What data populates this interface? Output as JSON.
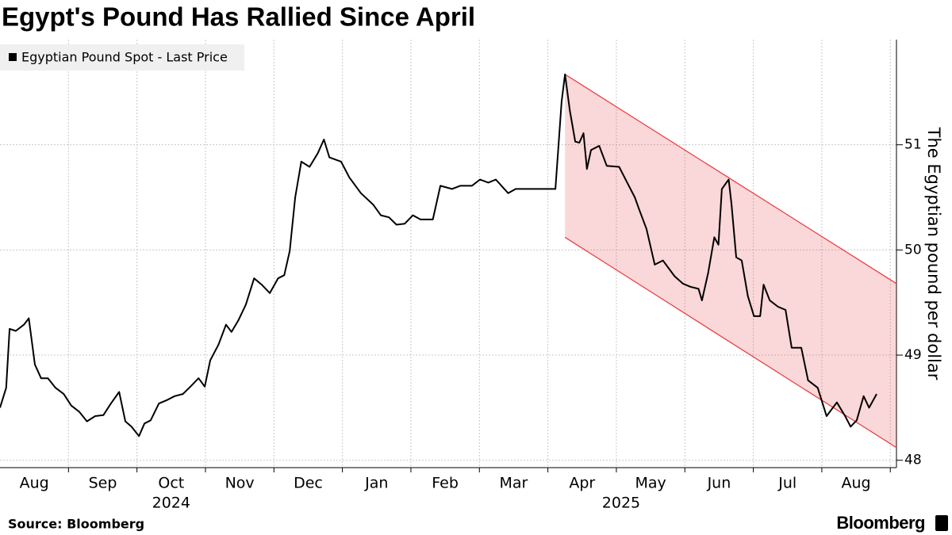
{
  "chart_data": {
    "type": "line",
    "title": "Egypt's Pound Has Rallied Since April",
    "y_axis_label": "The Egyptian pound per dollar",
    "source": "Source: Bloomberg",
    "brand": "Bloomberg",
    "x": [
      0,
      0.09,
      0.14,
      0.23,
      0.35,
      0.42,
      0.51,
      0.6,
      0.7,
      0.81,
      0.93,
      1.04,
      1.16,
      1.27,
      1.39,
      1.51,
      1.62,
      1.74,
      1.83,
      1.92,
      2.03,
      2.11,
      2.2,
      2.32,
      2.43,
      2.55,
      2.67,
      2.78,
      2.9,
      2.99,
      3.07,
      3.19,
      3.3,
      3.38,
      3.48,
      3.59,
      3.71,
      3.82,
      3.94,
      4.06,
      4.15,
      4.23,
      4.31,
      4.4,
      4.52,
      4.64,
      4.73,
      4.81,
      4.98,
      5.1,
      5.27,
      5.45,
      5.56,
      5.68,
      5.79,
      5.91,
      6.03,
      6.14,
      6.32,
      6.43,
      6.6,
      6.72,
      6.89,
      7.01,
      7.13,
      7.24,
      7.42,
      7.53,
      7.65,
      7.82,
      8.0,
      8.11,
      8.2,
      8.25,
      8.32,
      8.4,
      8.46,
      8.52,
      8.57,
      8.63,
      8.75,
      8.86,
      9.04,
      9.15,
      9.27,
      9.33,
      9.44,
      9.56,
      9.68,
      9.85,
      9.97,
      10.08,
      10.2,
      10.25,
      10.34,
      10.43,
      10.49,
      10.54,
      10.64,
      10.68,
      10.75,
      10.83,
      10.92,
      11.01,
      11.1,
      11.15,
      11.24,
      11.36,
      11.47,
      11.56,
      11.7,
      11.8,
      11.94,
      12.07,
      12.22,
      12.34,
      12.42,
      12.51,
      12.61,
      12.69,
      12.8
    ],
    "series": [
      {
        "name": "Egyptian Pound Spot - Last Price",
        "color": "#000000",
        "values": [
          48.5,
          48.69,
          49.25,
          49.23,
          49.29,
          49.35,
          48.91,
          48.78,
          48.78,
          48.69,
          48.63,
          48.52,
          48.46,
          48.37,
          48.42,
          48.43,
          48.54,
          48.65,
          48.37,
          48.32,
          48.23,
          48.35,
          48.38,
          48.54,
          48.57,
          48.61,
          48.63,
          48.7,
          48.78,
          48.7,
          48.95,
          49.1,
          49.29,
          49.22,
          49.33,
          49.48,
          49.73,
          49.67,
          49.59,
          49.73,
          49.76,
          49.99,
          50.5,
          50.84,
          50.79,
          50.92,
          51.05,
          50.88,
          50.84,
          50.69,
          50.54,
          50.43,
          50.33,
          50.31,
          50.24,
          50.25,
          50.33,
          50.29,
          50.29,
          50.61,
          50.58,
          50.61,
          50.61,
          50.67,
          50.64,
          50.67,
          50.54,
          50.58,
          50.58,
          50.58,
          50.58,
          50.58,
          51.41,
          51.67,
          51.33,
          51.03,
          51.02,
          51.11,
          50.77,
          50.95,
          50.99,
          50.8,
          50.79,
          50.65,
          50.5,
          50.39,
          50.2,
          49.86,
          49.9,
          49.75,
          49.68,
          49.65,
          49.63,
          49.52,
          49.78,
          50.12,
          50.05,
          50.58,
          50.67,
          50.44,
          49.93,
          49.9,
          49.56,
          49.37,
          49.37,
          49.67,
          49.52,
          49.46,
          49.43,
          49.07,
          49.07,
          48.76,
          48.69,
          48.42,
          48.55,
          48.42,
          48.32,
          48.38,
          48.61,
          48.5,
          48.63
        ]
      }
    ],
    "channel": {
      "x": [
        8.25,
        13.09
      ],
      "upper": [
        51.67,
        49.68
      ],
      "lower": [
        50.12,
        48.12
      ],
      "color": "#e8383c"
    },
    "xlim": [
      0,
      13.09
    ],
    "ylim": [
      47.93,
      52.0
    ],
    "yticks": [
      48,
      49,
      50,
      51
    ],
    "xticks": [
      {
        "value": 0.5,
        "label": "Aug"
      },
      {
        "value": 1.5,
        "label": "Sep"
      },
      {
        "value": 2.5,
        "label": "Oct"
      },
      {
        "value": 3.5,
        "label": "Nov"
      },
      {
        "value": 4.5,
        "label": "Dec"
      },
      {
        "value": 5.5,
        "label": "Jan"
      },
      {
        "value": 6.5,
        "label": "Feb"
      },
      {
        "value": 7.5,
        "label": "Mar"
      },
      {
        "value": 8.5,
        "label": "Apr"
      },
      {
        "value": 9.5,
        "label": "May"
      },
      {
        "value": 10.5,
        "label": "Jun"
      },
      {
        "value": 11.5,
        "label": "Jul"
      },
      {
        "value": 12.5,
        "label": "Aug"
      }
    ],
    "year_ticks": [
      {
        "value": 2.5,
        "label": "2024"
      },
      {
        "value": 9.07,
        "label": "2025"
      }
    ],
    "xgrid": [
      1,
      2,
      3,
      4,
      5,
      6,
      7,
      8,
      9,
      10,
      11,
      12,
      13
    ],
    "grid": true
  }
}
